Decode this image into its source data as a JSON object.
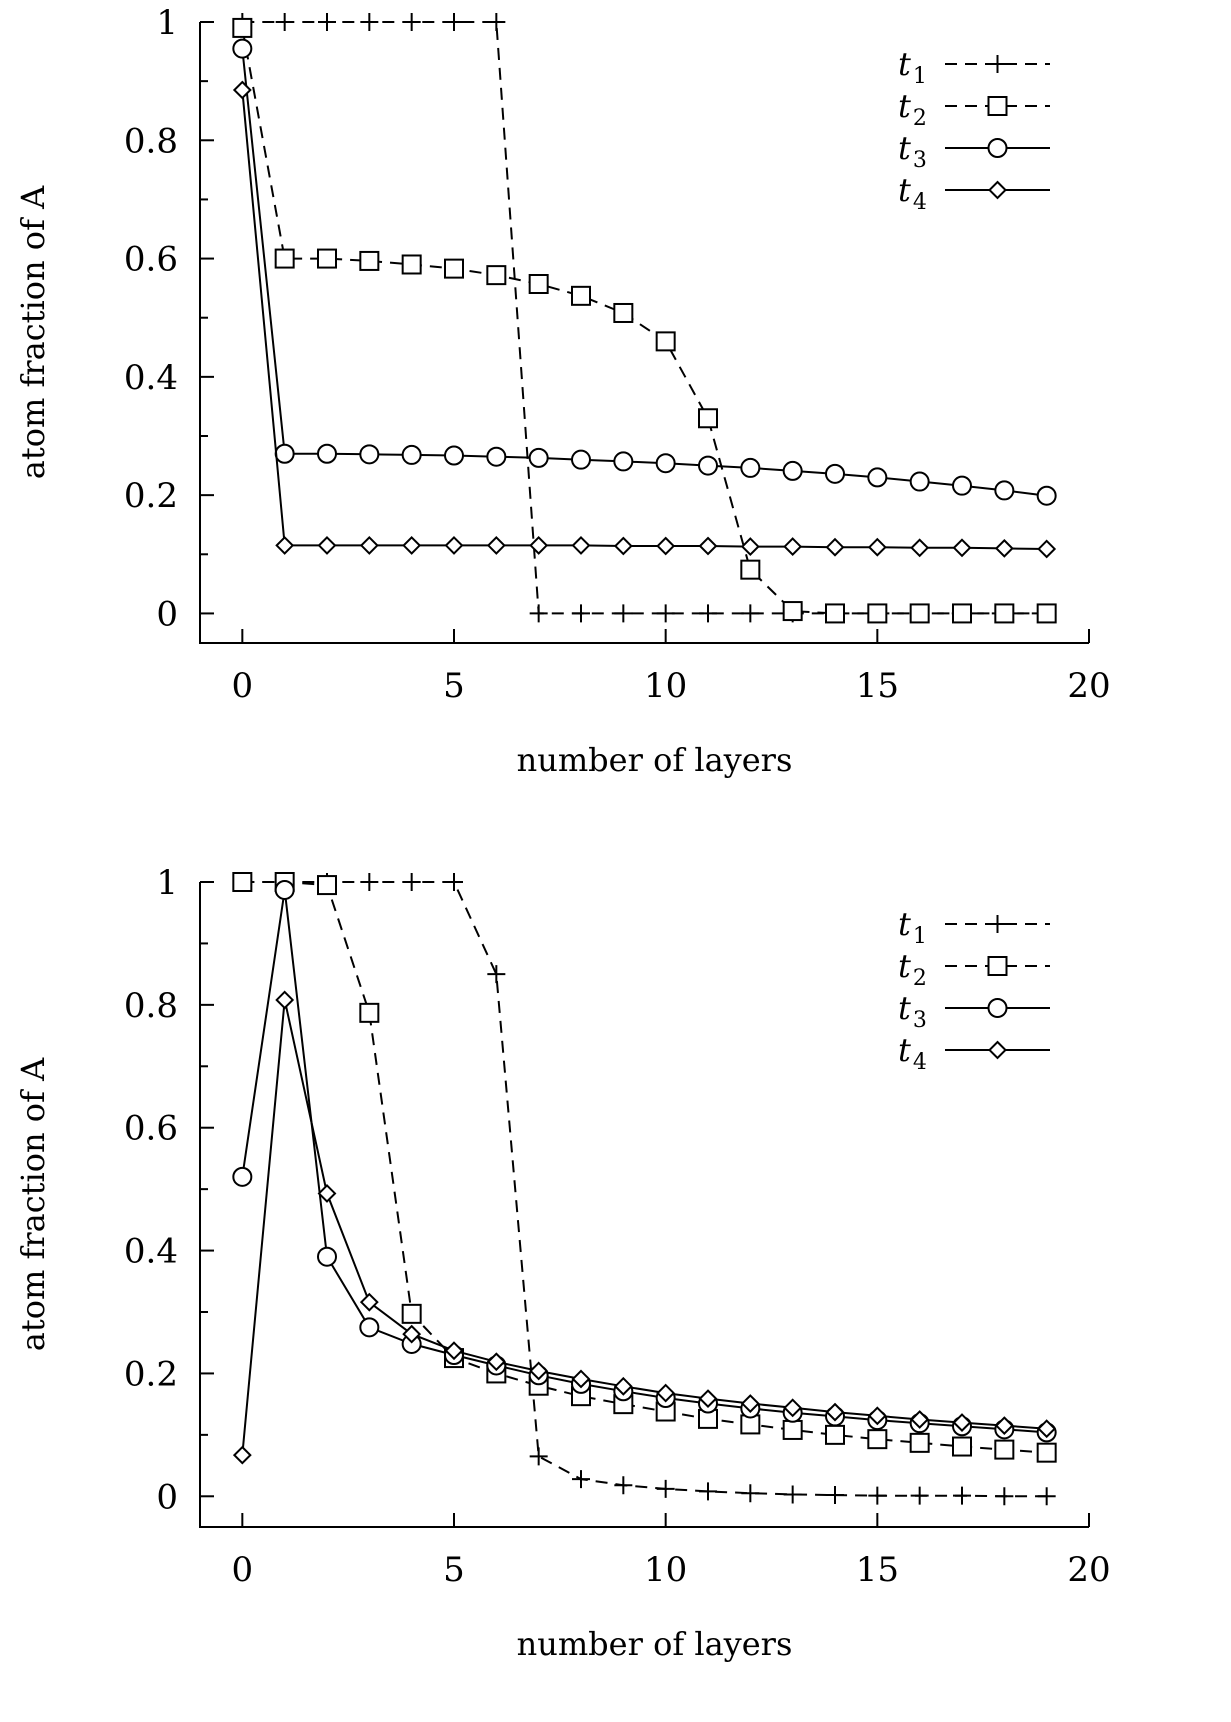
{
  "chart_data": [
    {
      "type": "line",
      "xlabel": "number of layers",
      "ylabel": "atom fraction of A",
      "xlim": [
        -1,
        20
      ],
      "ylim": [
        -0.05,
        1
      ],
      "x_ticks": [
        0,
        5,
        10,
        15,
        20
      ],
      "x_tick_labels": [
        "0",
        "5",
        "10",
        "15",
        "20"
      ],
      "y_ticks": [
        0,
        0.2,
        0.4,
        0.6,
        0.8,
        1
      ],
      "y_tick_labels": [
        "0",
        "0.2",
        "0.4",
        "0.6",
        "0.8",
        "1"
      ],
      "legend_position": "top-right",
      "series": [
        {
          "name": "t1",
          "label_main": "t",
          "label_sub": "1",
          "marker": "plus",
          "dash": "dashed",
          "x": [
            0,
            1,
            2,
            3,
            4,
            5,
            6,
            7,
            8,
            9,
            10,
            11,
            12,
            13,
            14,
            15,
            16,
            17,
            18,
            19
          ],
          "y": [
            1,
            1,
            1,
            1,
            1,
            1,
            1,
            0,
            0,
            0,
            0,
            0,
            0,
            0,
            0,
            0,
            0,
            0,
            0,
            0
          ]
        },
        {
          "name": "t2",
          "label_main": "t",
          "label_sub": "2",
          "marker": "square",
          "dash": "dashed",
          "x": [
            0,
            1,
            2,
            3,
            4,
            5,
            6,
            7,
            8,
            9,
            10,
            11,
            12,
            13,
            14,
            15,
            16,
            17,
            18,
            19
          ],
          "y": [
            0.99,
            0.6,
            0.6,
            0.596,
            0.59,
            0.583,
            0.572,
            0.557,
            0.537,
            0.508,
            0.46,
            0.33,
            0.074,
            0.004,
            0,
            0,
            0,
            0,
            0,
            0
          ]
        },
        {
          "name": "t3",
          "label_main": "t",
          "label_sub": "3",
          "marker": "circle",
          "dash": "solid",
          "x": [
            0,
            1,
            2,
            3,
            4,
            5,
            6,
            7,
            8,
            9,
            10,
            11,
            12,
            13,
            14,
            15,
            16,
            17,
            18,
            19
          ],
          "y": [
            0.955,
            0.27,
            0.27,
            0.269,
            0.268,
            0.267,
            0.265,
            0.263,
            0.26,
            0.257,
            0.254,
            0.25,
            0.246,
            0.241,
            0.236,
            0.23,
            0.223,
            0.216,
            0.208,
            0.199
          ]
        },
        {
          "name": "t4",
          "label_main": "t",
          "label_sub": "4",
          "marker": "diamond",
          "dash": "solid",
          "x": [
            0,
            1,
            2,
            3,
            4,
            5,
            6,
            7,
            8,
            9,
            10,
            11,
            12,
            13,
            14,
            15,
            16,
            17,
            18,
            19
          ],
          "y": [
            0.885,
            0.115,
            0.115,
            0.115,
            0.115,
            0.115,
            0.115,
            0.115,
            0.115,
            0.114,
            0.114,
            0.114,
            0.113,
            0.113,
            0.112,
            0.112,
            0.111,
            0.111,
            0.11,
            0.109
          ]
        }
      ]
    },
    {
      "type": "line",
      "xlabel": "number of layers",
      "ylabel": "atom fraction of A",
      "xlim": [
        -1,
        20
      ],
      "ylim": [
        -0.05,
        1
      ],
      "x_ticks": [
        0,
        5,
        10,
        15,
        20
      ],
      "x_tick_labels": [
        "0",
        "5",
        "10",
        "15",
        "20"
      ],
      "y_ticks": [
        0,
        0.2,
        0.4,
        0.6,
        0.8,
        1
      ],
      "y_tick_labels": [
        "0",
        "0.2",
        "0.4",
        "0.6",
        "0.8",
        "1"
      ],
      "legend_position": "top-right",
      "series": [
        {
          "name": "t1",
          "label_main": "t",
          "label_sub": "1",
          "marker": "plus",
          "dash": "dashed",
          "x": [
            0,
            1,
            2,
            3,
            4,
            5,
            6,
            7,
            8,
            9,
            10,
            11,
            12,
            13,
            14,
            15,
            16,
            17,
            18,
            19
          ],
          "y": [
            1,
            1,
            1,
            1,
            1,
            1,
            0.85,
            0.065,
            0.028,
            0.018,
            0.012,
            0.008,
            0.005,
            0.003,
            0.002,
            0.001,
            0.001,
            0.001,
            0,
            0
          ]
        },
        {
          "name": "t2",
          "label_main": "t",
          "label_sub": "2",
          "marker": "square",
          "dash": "dashed",
          "x": [
            0,
            1,
            2,
            3,
            4,
            5,
            6,
            7,
            8,
            9,
            10,
            11,
            12,
            13,
            14,
            15,
            16,
            17,
            18,
            19
          ],
          "y": [
            1,
            1,
            0.995,
            0.787,
            0.297,
            0.225,
            0.2,
            0.18,
            0.163,
            0.15,
            0.138,
            0.126,
            0.117,
            0.108,
            0.1,
            0.093,
            0.087,
            0.081,
            0.076,
            0.071
          ]
        },
        {
          "name": "t3",
          "label_main": "t",
          "label_sub": "3",
          "marker": "circle",
          "dash": "solid",
          "x": [
            0,
            1,
            2,
            3,
            4,
            5,
            6,
            7,
            8,
            9,
            10,
            11,
            12,
            13,
            14,
            15,
            16,
            17,
            18,
            19
          ],
          "y": [
            0.52,
            0.987,
            0.39,
            0.275,
            0.248,
            0.23,
            0.213,
            0.197,
            0.183,
            0.171,
            0.16,
            0.151,
            0.143,
            0.136,
            0.13,
            0.124,
            0.119,
            0.114,
            0.109,
            0.104
          ]
        },
        {
          "name": "t4",
          "label_main": "t",
          "label_sub": "4",
          "marker": "diamond",
          "dash": "solid",
          "x": [
            0,
            1,
            2,
            3,
            4,
            5,
            6,
            7,
            8,
            9,
            10,
            11,
            12,
            13,
            14,
            15,
            16,
            17,
            18,
            19
          ],
          "y": [
            0.067,
            0.808,
            0.493,
            0.316,
            0.264,
            0.237,
            0.219,
            0.204,
            0.191,
            0.179,
            0.168,
            0.159,
            0.151,
            0.144,
            0.137,
            0.131,
            0.125,
            0.12,
            0.115,
            0.11
          ]
        }
      ]
    }
  ]
}
